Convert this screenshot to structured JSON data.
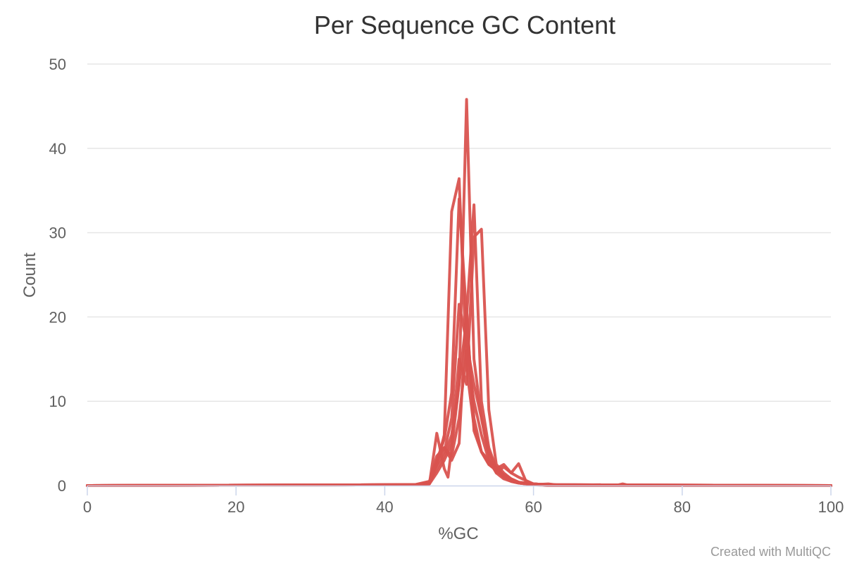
{
  "chart_data": {
    "type": "line",
    "title": "Per Sequence GC Content",
    "xlabel": "%GC",
    "ylabel": "Count",
    "xlim": [
      0,
      100
    ],
    "ylim": [
      0,
      50
    ],
    "xticks": [
      0,
      20,
      40,
      60,
      80,
      100
    ],
    "yticks": [
      0,
      10,
      20,
      30,
      40,
      50
    ],
    "xtick_labels": [
      "0",
      "20",
      "40",
      "60",
      "80",
      "100"
    ],
    "ytick_labels": [
      "0",
      "10",
      "20",
      "30",
      "40",
      "50"
    ],
    "grid": true,
    "legend": "none",
    "credit": "Created with MultiQC",
    "line_color": "#d9534f",
    "series": [
      {
        "x": [
          0,
          44,
          46,
          47,
          48,
          49,
          50,
          51,
          52,
          53,
          54,
          55,
          56,
          57,
          58,
          60,
          62,
          64,
          70,
          100
        ],
        "values": [
          0,
          0.1,
          0.3,
          2.5,
          6.0,
          32.5,
          36.4,
          14.0,
          7.0,
          4.0,
          3.0,
          2.0,
          1.3,
          0.8,
          0.4,
          0.2,
          0.1,
          0,
          0,
          0
        ]
      },
      {
        "x": [
          0,
          44,
          46,
          47,
          48,
          49,
          50,
          51,
          52,
          53,
          54,
          55,
          56,
          57,
          58,
          60,
          62,
          100
        ],
        "values": [
          0,
          0.1,
          0.5,
          3.0,
          5.5,
          11.0,
          34.0,
          20.0,
          8.0,
          4.0,
          2.5,
          1.8,
          1.0,
          0.5,
          0.3,
          0.1,
          0,
          0
        ]
      },
      {
        "x": [
          0,
          44,
          46,
          47,
          48,
          48.5,
          49,
          50,
          51,
          52,
          53,
          54,
          55,
          56,
          57,
          58,
          59,
          60,
          62,
          100
        ],
        "values": [
          0,
          0.1,
          0.2,
          6.2,
          2.0,
          1.0,
          4.5,
          12.0,
          45.8,
          15.0,
          8.0,
          4.0,
          2.0,
          1.2,
          0.8,
          0.4,
          0.2,
          0.1,
          0,
          0
        ]
      },
      {
        "x": [
          0,
          44,
          46,
          47,
          48,
          49,
          50,
          51,
          52,
          53,
          54,
          55,
          56,
          57,
          58,
          60,
          100
        ],
        "values": [
          0,
          0.1,
          0.3,
          2.0,
          3.5,
          6.0,
          12.0,
          20.0,
          33.3,
          10.0,
          4.5,
          2.0,
          1.0,
          0.6,
          0.3,
          0.1,
          0
        ]
      },
      {
        "x": [
          0,
          44,
          46,
          47,
          48,
          49,
          50,
          51,
          52,
          53,
          54,
          55,
          56,
          57,
          58,
          60,
          62,
          100
        ],
        "values": [
          0,
          0.1,
          0.2,
          1.5,
          3.0,
          5.0,
          15.0,
          12.0,
          29.5,
          30.4,
          9.0,
          2.5,
          1.5,
          0.8,
          0.4,
          0.2,
          0.1,
          0
        ]
      },
      {
        "x": [
          0,
          44,
          46,
          47,
          48,
          49,
          50,
          51,
          52,
          53,
          54,
          55,
          56,
          57,
          58,
          59,
          60,
          62,
          100
        ],
        "values": [
          0,
          0.1,
          0.2,
          2.5,
          4.0,
          8.0,
          21.5,
          17.0,
          12.0,
          8.0,
          3.5,
          1.5,
          2.2,
          1.5,
          2.6,
          0.5,
          0.2,
          0.1,
          0
        ]
      },
      {
        "x": [
          0,
          44,
          46,
          47,
          48,
          49,
          50,
          51,
          52,
          53,
          54,
          55,
          56,
          57,
          58,
          59,
          60,
          62,
          100
        ],
        "values": [
          0,
          0.1,
          0.3,
          3.0,
          4.5,
          3.0,
          5.0,
          21.0,
          6.5,
          4.0,
          2.5,
          2.0,
          2.5,
          1.5,
          1.0,
          0.6,
          0.2,
          0.1,
          0
        ]
      },
      {
        "x": [
          0,
          44,
          46,
          47,
          48,
          49,
          50,
          51,
          52,
          53,
          54,
          55,
          56,
          57,
          58,
          59,
          60,
          62,
          63,
          64,
          69,
          70,
          71,
          72,
          73,
          100
        ],
        "values": [
          0,
          0.1,
          0.4,
          3.5,
          4.5,
          3.5,
          8.0,
          16.0,
          10.0,
          6.0,
          3.0,
          1.5,
          0.8,
          0.5,
          0.3,
          0.2,
          0.1,
          0.2,
          0.1,
          0,
          0.1,
          0,
          0,
          0.2,
          0,
          0
        ]
      }
    ]
  }
}
